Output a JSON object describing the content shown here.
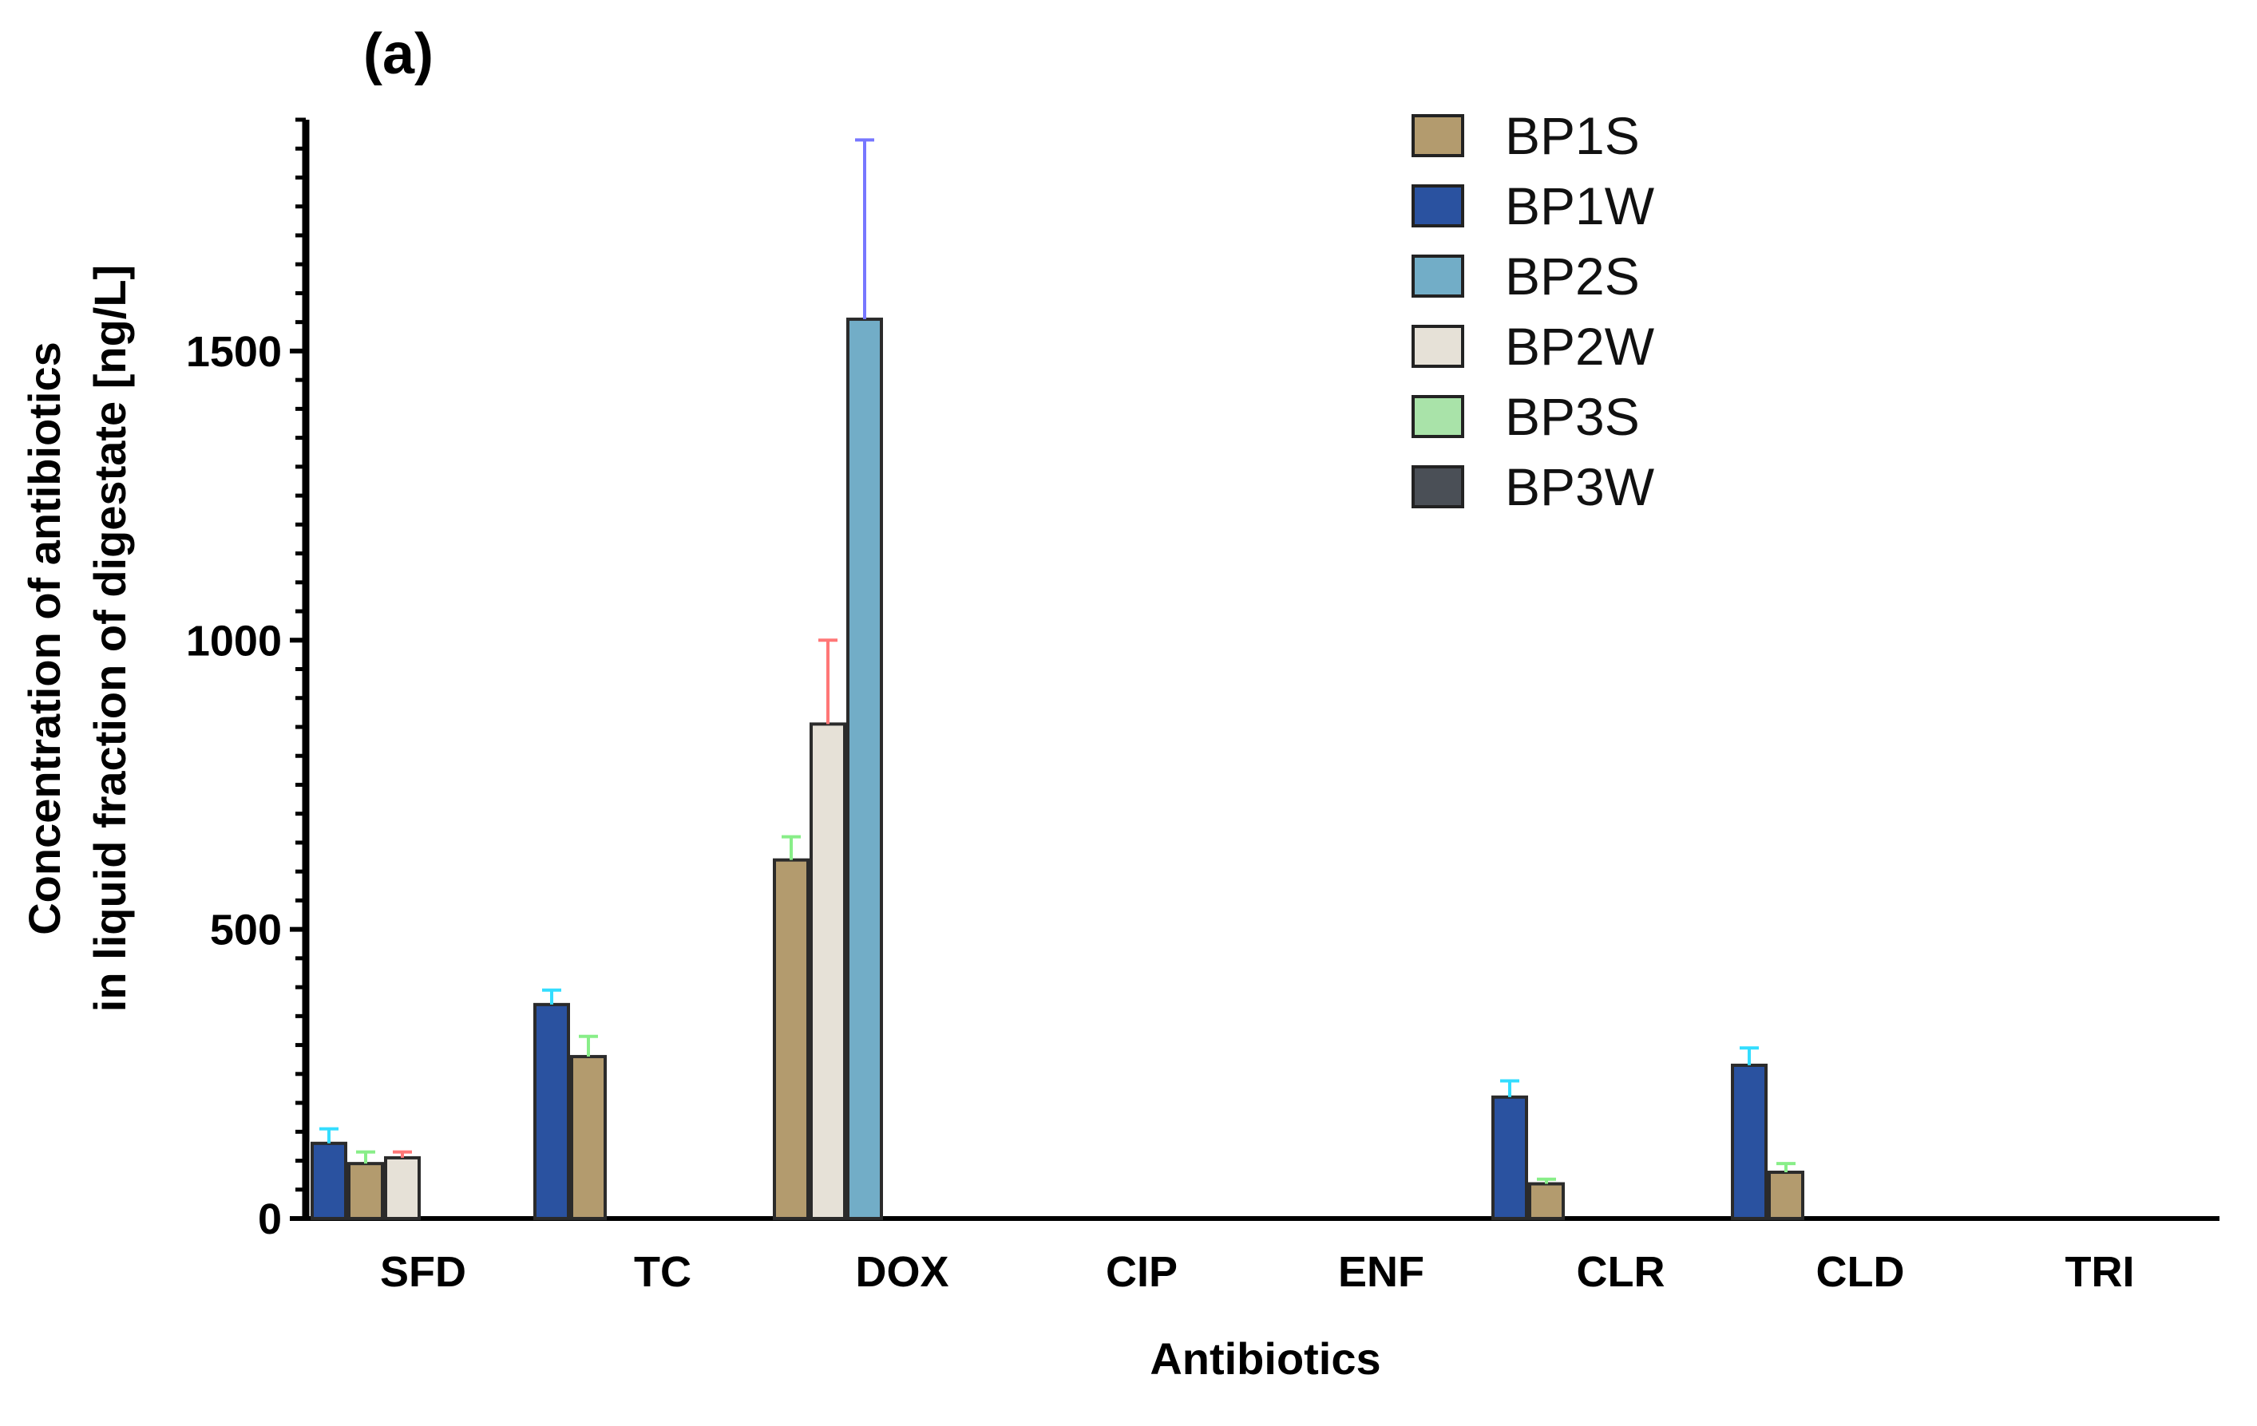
{
  "panel_label": "(a)",
  "chart_data": {
    "type": "bar",
    "title": "",
    "xlabel": "Antibiotics",
    "ylabel_lines": [
      "Concentration of antibiotics",
      "in liquid fraction of digestate [ng/L]"
    ],
    "ylim": [
      0,
      1900
    ],
    "yticks": [
      0,
      500,
      1000,
      1500
    ],
    "grid": false,
    "legend_position": "top-right",
    "categories": [
      "SFD",
      "TC",
      "DOX",
      "CIP",
      "ENF",
      "CLR",
      "CLD",
      "TRI"
    ],
    "series": [
      {
        "name": "BP1S",
        "color": "#b39b6e",
        "values": [
          95,
          280,
          620,
          0,
          0,
          60,
          80,
          0
        ],
        "errors": [
          20,
          35,
          40,
          0,
          0,
          8,
          15,
          0
        ],
        "error_color": "#88ee88"
      },
      {
        "name": "BP1W",
        "color": "#2a52a0",
        "values": [
          130,
          370,
          0,
          0,
          0,
          210,
          265,
          0
        ],
        "errors": [
          25,
          25,
          0,
          0,
          0,
          28,
          30,
          0
        ],
        "error_color": "#33ddff"
      },
      {
        "name": "BP2S",
        "color": "#72adc7",
        "values": [
          0,
          0,
          1555,
          0,
          0,
          0,
          0,
          0
        ],
        "errors": [
          0,
          0,
          310,
          0,
          0,
          0,
          0,
          0
        ],
        "error_color": "#7777ff"
      },
      {
        "name": "BP2W",
        "color": "#e6e1d7",
        "values": [
          105,
          0,
          855,
          0,
          0,
          0,
          0,
          0
        ],
        "errors": [
          10,
          0,
          145,
          0,
          0,
          0,
          0,
          0
        ],
        "error_color": "#ff7777"
      },
      {
        "name": "BP3S",
        "color": "#a9e3a9",
        "values": [
          0,
          0,
          0,
          0,
          0,
          0,
          0,
          0
        ],
        "errors": [
          0,
          0,
          0,
          0,
          0,
          0,
          0,
          0
        ],
        "error_color": "#88ee88"
      },
      {
        "name": "BP3W",
        "color": "#4a4f56",
        "values": [
          0,
          0,
          0,
          0,
          0,
          0,
          0,
          0
        ],
        "errors": [
          0,
          0,
          0,
          0,
          0,
          0,
          0,
          0
        ],
        "error_color": "#222222"
      }
    ],
    "bar_order": {
      "SFD": [
        "BP1W",
        "BP1S",
        "BP2W"
      ],
      "TC": [
        "BP1W",
        "BP1S"
      ],
      "DOX": [
        "BP1S",
        "BP2W",
        "BP2S"
      ],
      "CLR": [
        "BP1W",
        "BP1S"
      ],
      "CLD": [
        "BP1W",
        "BP1S"
      ]
    }
  }
}
